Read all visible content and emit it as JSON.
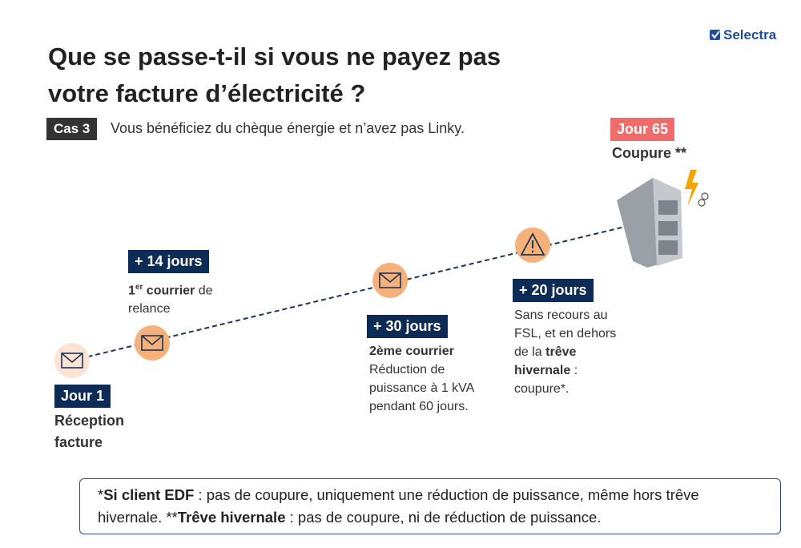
{
  "logo": "Selectra",
  "header": {
    "title": "Que se passe-t-il si vous ne payez pas votre facture d’électricité ?",
    "case_badge": "Cas 3",
    "case_text": "Vous bénéficiez du chèque énergie et n’avez pas Linky."
  },
  "steps": [
    {
      "label": "Jour 1",
      "description": [
        {
          "text": "Réception facture",
          "bold": true
        }
      ]
    },
    {
      "label": "+ 14 jours",
      "description": [
        {
          "text": "1",
          "bold": true
        },
        {
          "text": "er",
          "bold": true,
          "sup": true
        },
        {
          "text": " courrier",
          "bold": true
        },
        {
          "text": " de relance"
        }
      ]
    },
    {
      "label": "+ 30 jours",
      "description": [
        {
          "text": "2ème courrier",
          "bold": true
        },
        {
          "text": " Réduction de puissance à 1 kVA pendant 60 jours."
        }
      ]
    },
    {
      "label": "+ 20 jours",
      "description": [
        {
          "text": "Sans recours au FSL, et en dehors de la "
        },
        {
          "text": "trêve hivernale",
          "bold": true
        },
        {
          "text": " : coupure*."
        }
      ]
    },
    {
      "label": "Jour 65",
      "description": [
        {
          "text": "Coupure **",
          "bold": true
        }
      ]
    }
  ],
  "footnote": [
    {
      "text": "*"
    },
    {
      "text": "Si client EDF",
      "bold": true
    },
    {
      "text": " : pas de coupure, uniquement une réduction de puissance, même hors trêve hivernale. **"
    },
    {
      "text": "Trêve hivernale",
      "bold": true
    },
    {
      "text": "  : pas de coupure, ni de réduction de puissance."
    }
  ]
}
